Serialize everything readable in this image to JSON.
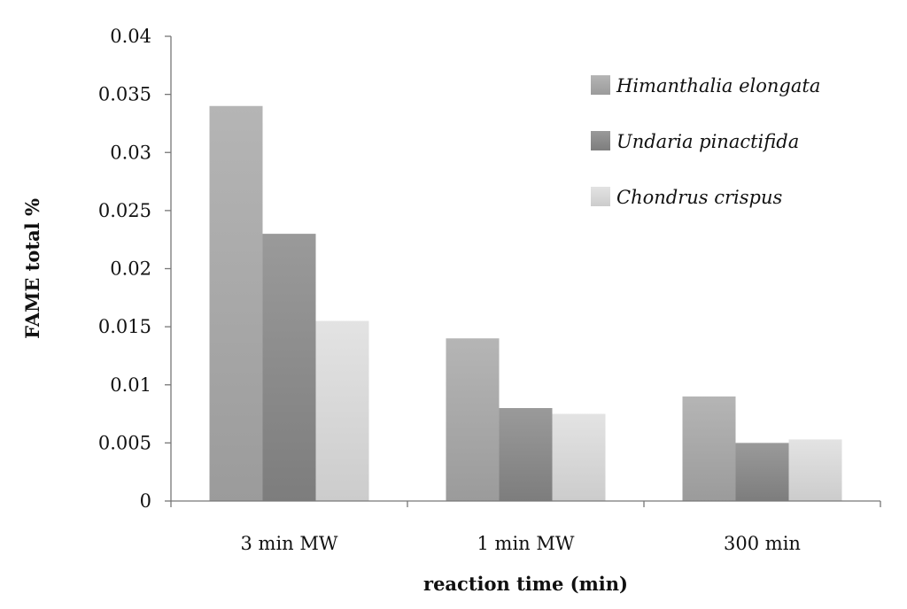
{
  "chart_data": {
    "type": "bar",
    "title": "",
    "xlabel": "reaction time (min)",
    "ylabel": "FAME total %",
    "ylim": [
      0,
      0.04
    ],
    "yticks": [
      "0",
      "0.005",
      "0.01",
      "0.015",
      "0.02",
      "0.025",
      "0.03",
      "0.035",
      "0.04"
    ],
    "ytick_values": [
      0,
      0.005,
      0.01,
      0.015,
      0.02,
      0.025,
      0.03,
      0.035,
      0.04
    ],
    "categories": [
      "3 min MW",
      "1 min MW",
      "300 min"
    ],
    "series": [
      {
        "name": "Himanthalia elongata",
        "values": [
          0.034,
          0.014,
          0.009
        ],
        "color": "#a8a8a8"
      },
      {
        "name": "Undaria pinactifida",
        "values": [
          0.023,
          0.008,
          0.005
        ],
        "color": "#888888"
      },
      {
        "name": "Chondrus crispus",
        "values": [
          0.0155,
          0.0075,
          0.0053
        ],
        "color": "#dedede"
      }
    ],
    "legend_position": "top-right",
    "grid": false
  }
}
